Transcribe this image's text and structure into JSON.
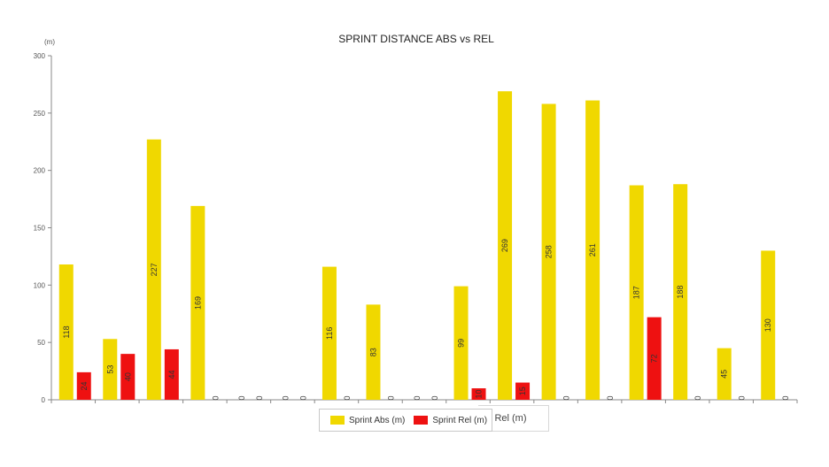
{
  "chart_data": {
    "type": "bar",
    "title": "SPRINT DISTANCE ABS vs REL",
    "unit_label": "(m)",
    "ylim": [
      0,
      300
    ],
    "yticks": [
      0,
      50,
      100,
      150,
      200,
      250,
      300
    ],
    "grid": false,
    "legend_position": "bottom",
    "categories": [
      "",
      "",
      "",
      "",
      "",
      "",
      "",
      "",
      "",
      "",
      "",
      "",
      "",
      "",
      "",
      "",
      ""
    ],
    "series": [
      {
        "name": "Sprint Abs (m)",
        "color": "#f0d800",
        "values": [
          118,
          53,
          227,
          169,
          0,
          0,
          116,
          83,
          0,
          99,
          269,
          258,
          261,
          187,
          188,
          45,
          130
        ]
      },
      {
        "name": "Sprint Rel (m)",
        "color": "#ee1111",
        "values": [
          24,
          40,
          44,
          0,
          0,
          0,
          0,
          0,
          0,
          10,
          15,
          0,
          0,
          72,
          0,
          0,
          0
        ]
      }
    ]
  },
  "legend_ghost_text": "print Rel (m)"
}
